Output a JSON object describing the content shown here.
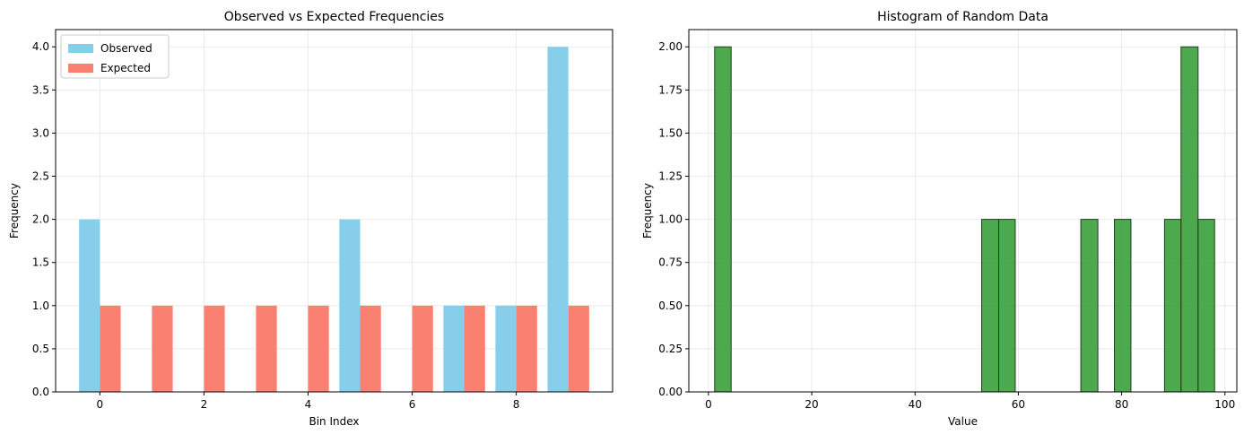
{
  "chart_data": [
    {
      "type": "bar",
      "title": "Observed vs Expected Frequencies",
      "xlabel": "Bin Index",
      "ylabel": "Frequency",
      "grid": true,
      "legend_position": "top-left",
      "xlim": [
        -0.85,
        9.85
      ],
      "ylim": [
        0,
        4.2
      ],
      "xticks": [
        0,
        2,
        4,
        6,
        8
      ],
      "xtick_labels": [
        "0",
        "2",
        "4",
        "6",
        "8"
      ],
      "yticks": [
        0,
        0.5,
        1,
        1.5,
        2,
        2.5,
        3,
        3.5,
        4
      ],
      "ytick_labels": [
        "0.0",
        "0.5",
        "1.0",
        "1.5",
        "2.0",
        "2.5",
        "3.0",
        "3.5",
        "4.0"
      ],
      "categories": [
        0,
        1,
        2,
        3,
        4,
        5,
        6,
        7,
        8,
        9
      ],
      "bar_width": 0.4,
      "series": [
        {
          "name": "Observed",
          "color": "#87ceeb",
          "offset": -0.2,
          "values": [
            2,
            0,
            0,
            0,
            0,
            2,
            0,
            1,
            1,
            4
          ]
        },
        {
          "name": "Expected",
          "color": "#fa8072",
          "offset": 0.2,
          "values": [
            1,
            1,
            1,
            1,
            1,
            1,
            1,
            1,
            1,
            1
          ]
        }
      ]
    },
    {
      "type": "bar",
      "subtype": "histogram",
      "title": "Histogram of Random Data",
      "xlabel": "Value",
      "ylabel": "Frequency",
      "grid": true,
      "xlim": [
        -3.8,
        102.3
      ],
      "ylim": [
        0,
        2.1
      ],
      "xticks": [
        0,
        20,
        40,
        60,
        80,
        100
      ],
      "xtick_labels": [
        "0",
        "20",
        "40",
        "60",
        "80",
        "100"
      ],
      "yticks": [
        0,
        0.25,
        0.5,
        0.75,
        1,
        1.25,
        1.5,
        1.75,
        2
      ],
      "ytick_labels": [
        "0.00",
        "0.25",
        "0.50",
        "0.75",
        "1.00",
        "1.25",
        "1.50",
        "1.75",
        "2.00"
      ],
      "color": "#2e9a2e",
      "edge_color": "#1f3f1f",
      "bins": [
        {
          "start": 1.2,
          "end": 4.4,
          "count": 2
        },
        {
          "start": 52.9,
          "end": 56.2,
          "count": 1
        },
        {
          "start": 56.2,
          "end": 59.4,
          "count": 1
        },
        {
          "start": 72.1,
          "end": 75.4,
          "count": 1
        },
        {
          "start": 78.6,
          "end": 81.8,
          "count": 1
        },
        {
          "start": 88.3,
          "end": 91.5,
          "count": 1
        },
        {
          "start": 91.5,
          "end": 94.8,
          "count": 2
        },
        {
          "start": 94.8,
          "end": 98.0,
          "count": 1
        }
      ]
    }
  ]
}
